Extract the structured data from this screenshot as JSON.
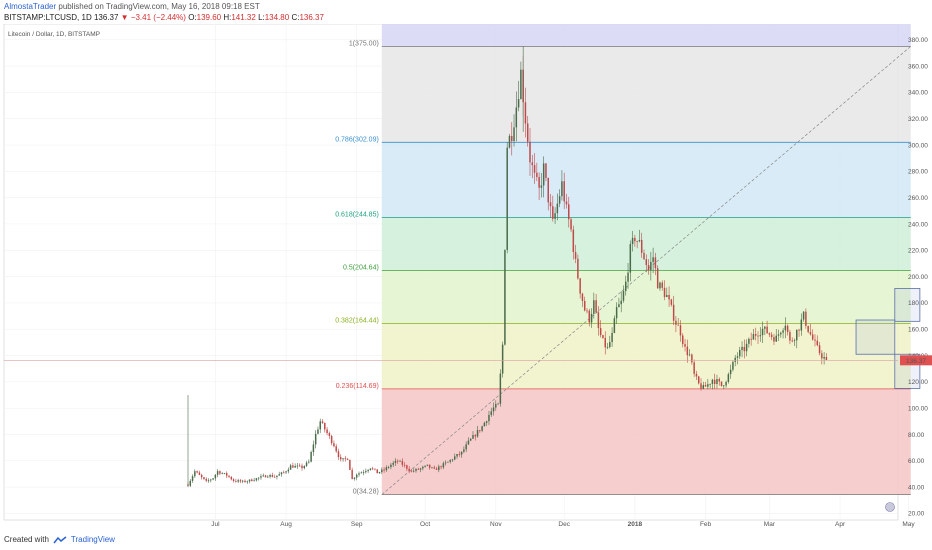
{
  "header": {
    "author": "AlmostaTrader",
    "published": "published on TradingView.com, May 16, 2018 09:18 EST",
    "symbol": "BITSTAMP:LTCUSD, 1D",
    "last": "136.37",
    "change_arrow": "▼",
    "change": "−3.41 (−2.44%)",
    "o_label": "O:",
    "o": "139.60",
    "h_label": "H:",
    "h": "141.32",
    "l_label": "L:",
    "l": "134.80",
    "c_label": "C:",
    "c": "136.37"
  },
  "legend": "Litecoin / Dollar, 1D, BITSTAMP",
  "price_tag": "136.37",
  "footer": {
    "created": "Created with",
    "brand": "TradingView"
  },
  "colors": {
    "up": "#4a6b4a",
    "down": "#c04848",
    "price_line": "#d9a0a0",
    "tag": "#e05050"
  },
  "chart_data": {
    "type": "candlestick",
    "title": "Litecoin / Dollar, 1D, BITSTAMP",
    "ylim": [
      15,
      392
    ],
    "y_ticks": [
      20,
      40,
      60,
      80,
      100,
      120,
      140,
      160,
      180,
      200,
      220,
      240,
      260,
      280,
      300,
      320,
      340,
      360,
      380
    ],
    "x_ticks": [
      "Jul",
      "Aug",
      "Sep",
      "Oct",
      "Nov",
      "Dec",
      "2018",
      "Feb",
      "Mar",
      "Apr",
      "May"
    ],
    "x_tick_days": [
      12,
      43,
      74,
      104,
      135,
      165,
      196,
      227,
      255,
      286,
      316
    ],
    "start_date": "2017-06-19",
    "end_date": "2018-05-16",
    "price_line": 136.37,
    "fib_levels": [
      {
        "ratio": "0",
        "price": 34.28,
        "label": "0(34.28)",
        "color": "#777777"
      },
      {
        "ratio": "0.236",
        "price": 114.69,
        "label": "0.236(114.69)",
        "color": "#e05050"
      },
      {
        "ratio": "0.382",
        "price": 164.44,
        "label": "0.382(164.44)",
        "color": "#8ab020"
      },
      {
        "ratio": "0.5",
        "price": 204.64,
        "label": "0.5(204.64)",
        "color": "#40a040"
      },
      {
        "ratio": "0.618",
        "price": 244.85,
        "label": "0.618(244.85)",
        "color": "#20a080"
      },
      {
        "ratio": "0.786",
        "price": 302.09,
        "label": "0.786(302.09)",
        "color": "#3a90d0"
      },
      {
        "ratio": "1",
        "price": 375.0,
        "label": "1(375.00)",
        "color": "#777777"
      }
    ],
    "fib_bands": [
      {
        "from": 34.28,
        "to": 114.69,
        "color": "#f5c6c6"
      },
      {
        "from": 114.69,
        "to": 164.44,
        "color": "#f0f2c8"
      },
      {
        "from": 164.44,
        "to": 204.64,
        "color": "#e2f5cc"
      },
      {
        "from": 204.64,
        "to": 244.85,
        "color": "#cfefd8"
      },
      {
        "from": 244.85,
        "to": 302.09,
        "color": "#d2e8f5"
      },
      {
        "from": 302.09,
        "to": 375.0,
        "color": "#e6e6e6"
      },
      {
        "from": 375.0,
        "to": 392,
        "color": "#d6d6f5"
      }
    ],
    "fib_span_days": [
      85,
      317
    ],
    "trend_line": {
      "from": [
        85,
        34.28
      ],
      "to": [
        317,
        375.0
      ]
    },
    "rectangles": [
      {
        "day_from": 293,
        "day_to": 310,
        "low": 141,
        "high": 167
      },
      {
        "day_from": 310,
        "day_to": 321,
        "low": 166,
        "high": 191
      },
      {
        "day_from": 310,
        "day_to": 321,
        "low": 115,
        "high": 141
      }
    ],
    "anchors": [
      [
        0,
        42
      ],
      [
        3,
        52
      ],
      [
        8,
        44
      ],
      [
        11,
        47
      ],
      [
        13,
        52
      ],
      [
        17,
        49
      ],
      [
        20,
        45
      ],
      [
        24,
        44
      ],
      [
        27,
        45
      ],
      [
        31,
        47
      ],
      [
        35,
        49
      ],
      [
        38,
        48
      ],
      [
        42,
        51
      ],
      [
        45,
        56
      ],
      [
        50,
        55
      ],
      [
        53,
        59
      ],
      [
        56,
        80
      ],
      [
        58,
        90
      ],
      [
        60,
        84
      ],
      [
        64,
        72
      ],
      [
        67,
        60
      ],
      [
        70,
        62
      ],
      [
        72,
        46
      ],
      [
        74,
        50
      ],
      [
        77,
        52
      ],
      [
        80,
        55
      ],
      [
        83,
        51
      ],
      [
        86,
        53
      ],
      [
        89,
        57
      ],
      [
        92,
        60
      ],
      [
        95,
        56
      ],
      [
        98,
        52
      ],
      [
        102,
        54
      ],
      [
        105,
        56
      ],
      [
        108,
        53
      ],
      [
        111,
        56
      ],
      [
        114,
        59
      ],
      [
        117,
        63
      ],
      [
        120,
        66
      ],
      [
        123,
        74
      ],
      [
        126,
        80
      ],
      [
        129,
        86
      ],
      [
        132,
        95
      ],
      [
        134,
        100
      ],
      [
        136,
        102
      ],
      [
        138,
        148
      ],
      [
        140,
        300
      ],
      [
        142,
        310
      ],
      [
        144,
        330
      ],
      [
        146,
        355
      ],
      [
        148,
        320
      ],
      [
        150,
        290
      ],
      [
        152,
        275
      ],
      [
        154,
        265
      ],
      [
        156,
        282
      ],
      [
        158,
        260
      ],
      [
        160,
        240
      ],
      [
        162,
        255
      ],
      [
        164,
        270
      ],
      [
        166,
        250
      ],
      [
        168,
        235
      ],
      [
        170,
        210
      ],
      [
        172,
        190
      ],
      [
        174,
        175
      ],
      [
        176,
        168
      ],
      [
        178,
        180
      ],
      [
        180,
        160
      ],
      [
        182,
        150
      ],
      [
        184,
        145
      ],
      [
        186,
        155
      ],
      [
        188,
        175
      ],
      [
        190,
        180
      ],
      [
        192,
        195
      ],
      [
        194,
        220
      ],
      [
        196,
        230
      ],
      [
        198,
        225
      ],
      [
        200,
        215
      ],
      [
        202,
        205
      ],
      [
        204,
        215
      ],
      [
        206,
        195
      ],
      [
        208,
        190
      ],
      [
        210,
        185
      ],
      [
        212,
        175
      ],
      [
        214,
        165
      ],
      [
        216,
        158
      ],
      [
        218,
        145
      ],
      [
        220,
        140
      ],
      [
        222,
        125
      ],
      [
        224,
        118
      ],
      [
        226,
        115
      ],
      [
        228,
        118
      ],
      [
        230,
        122
      ],
      [
        232,
        120
      ],
      [
        234,
        117
      ],
      [
        236,
        122
      ],
      [
        238,
        128
      ],
      [
        240,
        138
      ],
      [
        242,
        142
      ],
      [
        244,
        145
      ],
      [
        246,
        150
      ],
      [
        248,
        155
      ],
      [
        250,
        158
      ],
      [
        252,
        160
      ],
      [
        254,
        158
      ],
      [
        256,
        155
      ],
      [
        258,
        153
      ],
      [
        260,
        160
      ],
      [
        262,
        165
      ],
      [
        264,
        150
      ],
      [
        266,
        155
      ],
      [
        268,
        162
      ],
      [
        270,
        170
      ],
      [
        272,
        160
      ],
      [
        274,
        152
      ],
      [
        276,
        145
      ],
      [
        278,
        140
      ],
      [
        280,
        136
      ]
    ]
  }
}
